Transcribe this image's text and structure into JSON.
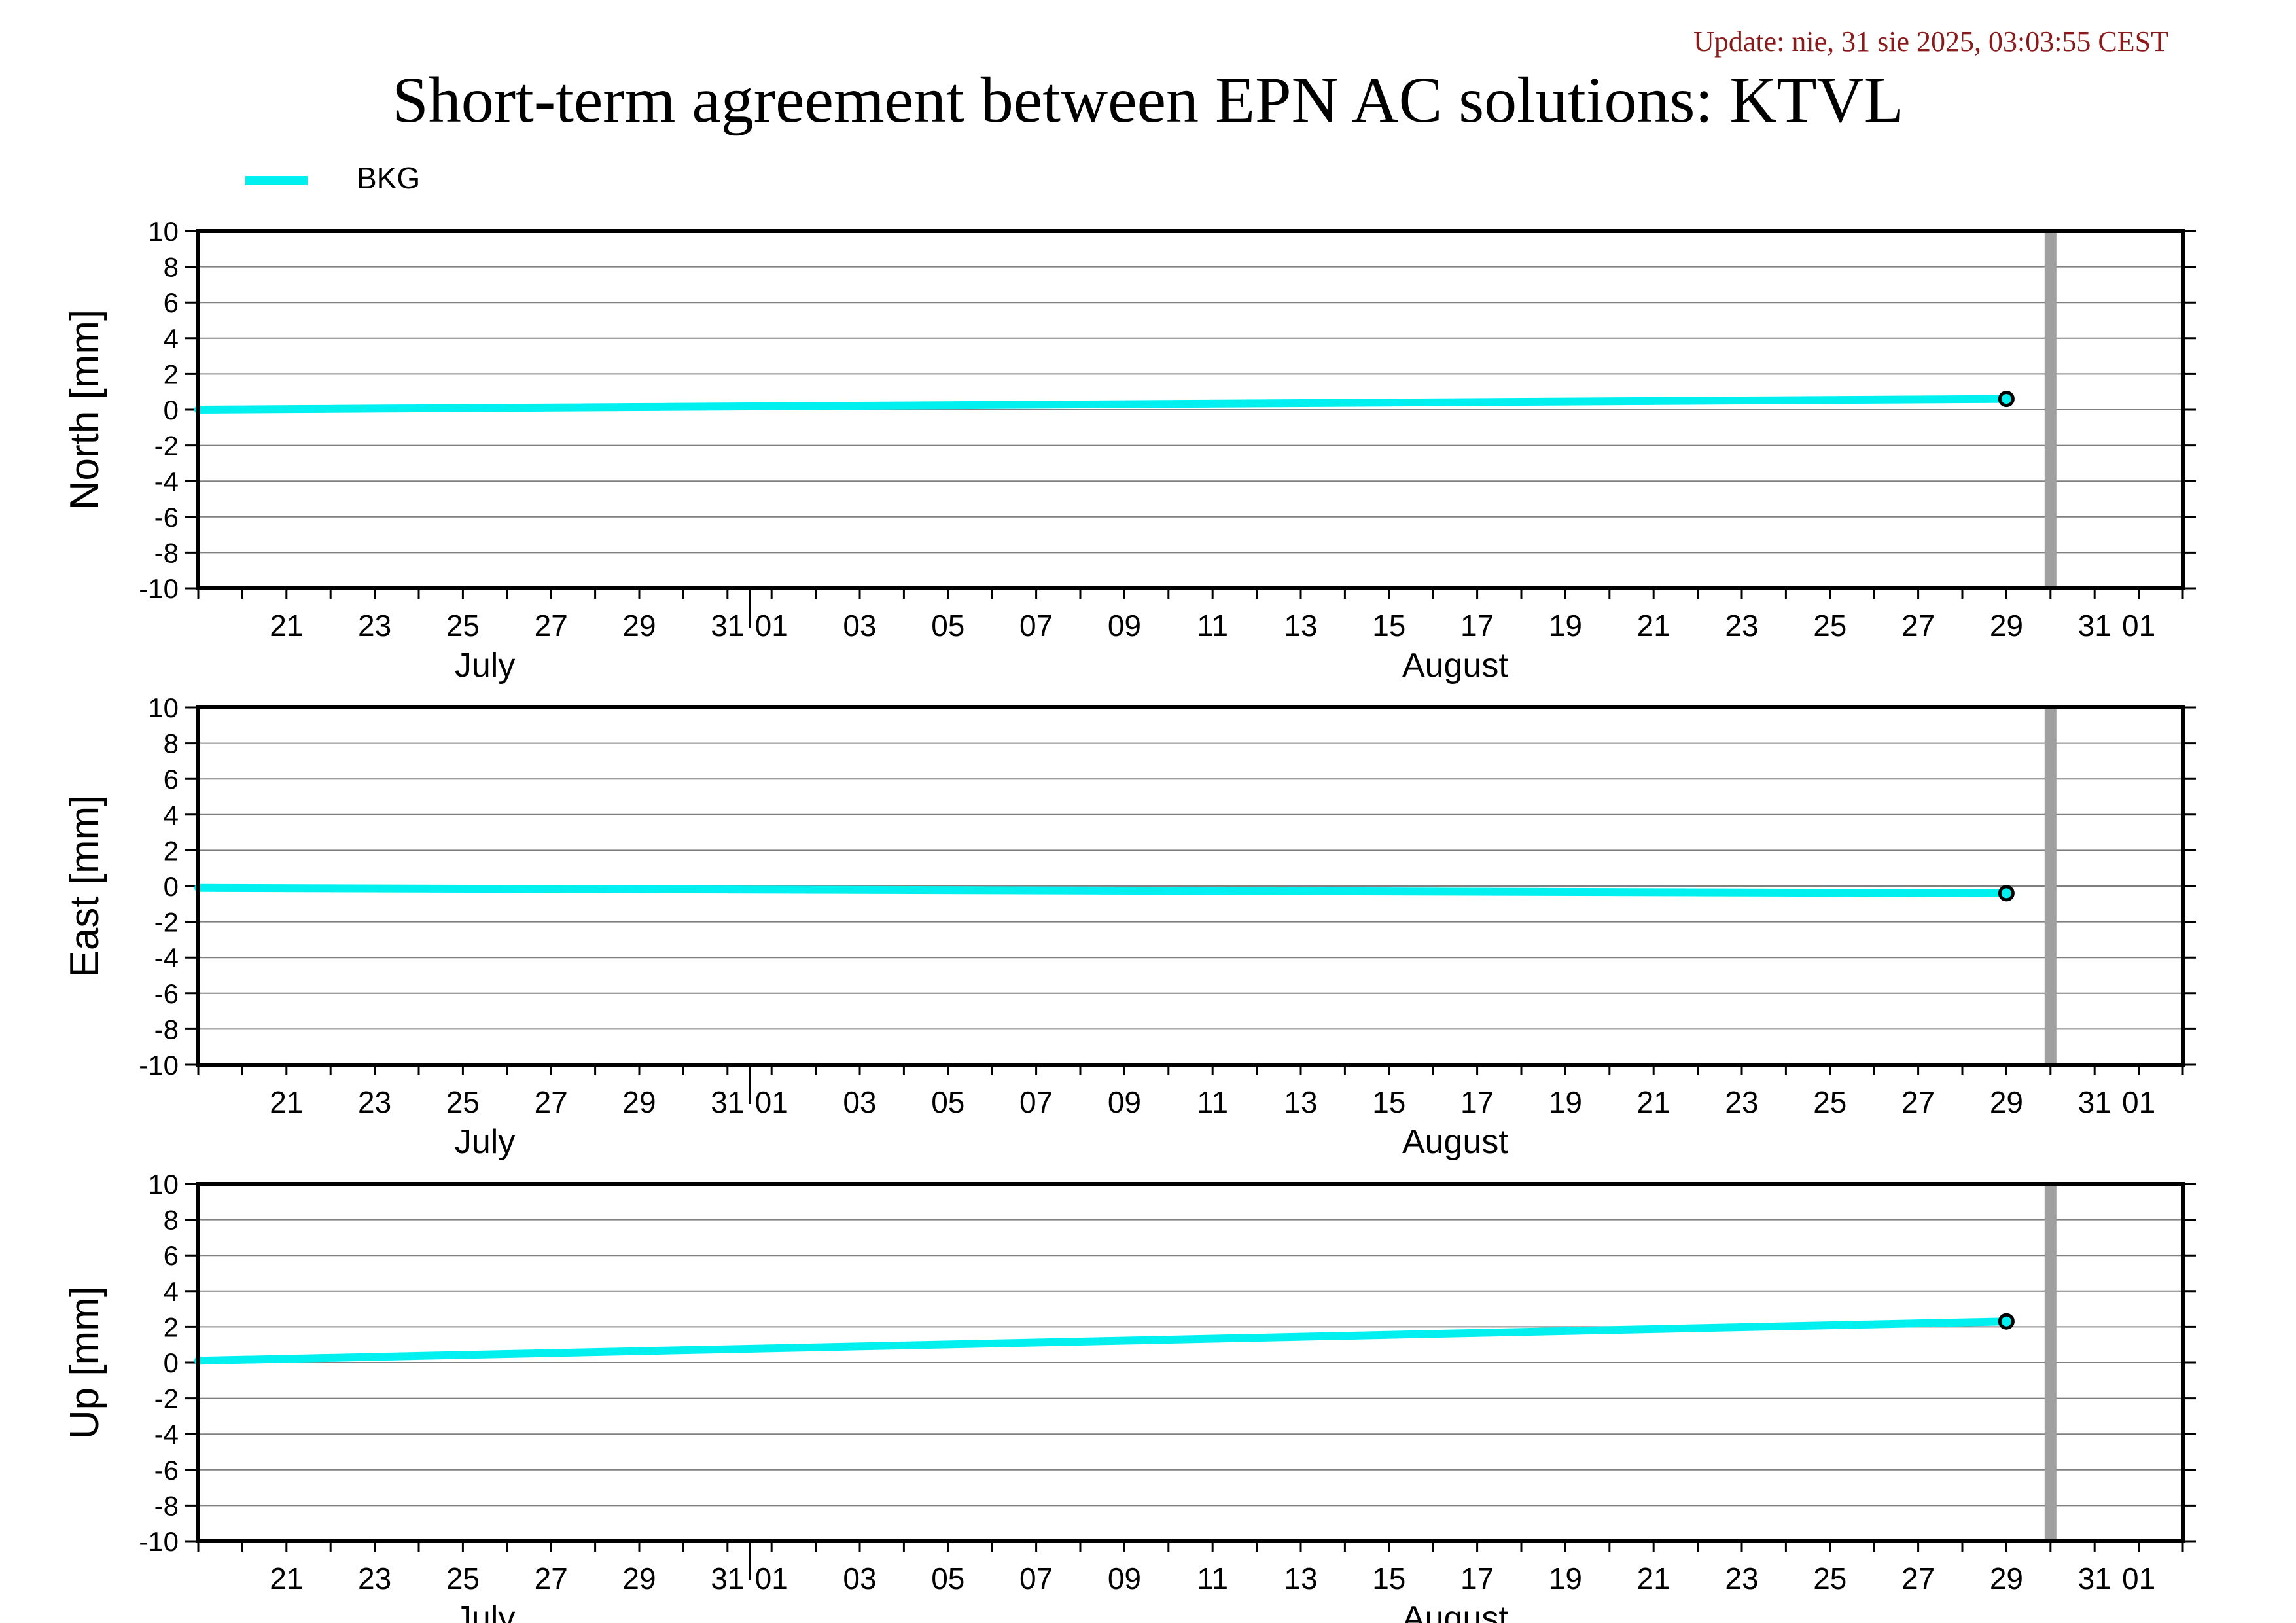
{
  "header": {
    "update": "Update: nie, 31 sie 2025, 03:03:55 CEST",
    "title": "Short-term agreement between EPN AC solutions: KTVL"
  },
  "legend": [
    {
      "label": "BKG",
      "color": "#00f0f0"
    }
  ],
  "colors": {
    "series": "#00f0f0",
    "marker_fill": "#00f0f0",
    "marker_edge": "#000000",
    "today_bar": "#a0a0a0",
    "grid": "#808080",
    "frame": "#000000"
  },
  "chart_data": [
    {
      "type": "line",
      "ylabel": "North [mm]",
      "ylim": [
        -10,
        10
      ],
      "yticks": [
        -10,
        -8,
        -6,
        -4,
        -2,
        0,
        2,
        4,
        6,
        8,
        10
      ],
      "xlim": [
        "2025-07-19",
        "2025-09-02"
      ],
      "x_tick_labels": [
        {
          "date": "2025-07-21",
          "label": "21"
        },
        {
          "date": "2025-07-23",
          "label": "23"
        },
        {
          "date": "2025-07-25",
          "label": "25"
        },
        {
          "date": "2025-07-27",
          "label": "27"
        },
        {
          "date": "2025-07-29",
          "label": "29"
        },
        {
          "date": "2025-07-31",
          "label": "31"
        },
        {
          "date": "2025-08-01",
          "label": "01"
        },
        {
          "date": "2025-08-03",
          "label": "03"
        },
        {
          "date": "2025-08-05",
          "label": "05"
        },
        {
          "date": "2025-08-07",
          "label": "07"
        },
        {
          "date": "2025-08-09",
          "label": "09"
        },
        {
          "date": "2025-08-11",
          "label": "11"
        },
        {
          "date": "2025-08-13",
          "label": "13"
        },
        {
          "date": "2025-08-15",
          "label": "15"
        },
        {
          "date": "2025-08-17",
          "label": "17"
        },
        {
          "date": "2025-08-19",
          "label": "19"
        },
        {
          "date": "2025-08-21",
          "label": "21"
        },
        {
          "date": "2025-08-23",
          "label": "23"
        },
        {
          "date": "2025-08-25",
          "label": "25"
        },
        {
          "date": "2025-08-27",
          "label": "27"
        },
        {
          "date": "2025-08-29",
          "label": "29"
        },
        {
          "date": "2025-08-31",
          "label": "31"
        },
        {
          "date": "2025-09-01",
          "label": "01"
        }
      ],
      "month_labels": [
        {
          "date": "2025-07-25.5",
          "label": "July"
        },
        {
          "date": "2025-08-16.5",
          "label": "August"
        }
      ],
      "today_marker": "2025-08-30",
      "grid": true,
      "series": [
        {
          "name": "BKG",
          "x": [
            "2025-07-19",
            "2025-08-29"
          ],
          "y": [
            0.0,
            0.6
          ],
          "marker_last": true
        }
      ]
    },
    {
      "type": "line",
      "ylabel": "East [mm]",
      "ylim": [
        -10,
        10
      ],
      "yticks": [
        -10,
        -8,
        -6,
        -4,
        -2,
        0,
        2,
        4,
        6,
        8,
        10
      ],
      "xlim": [
        "2025-07-19",
        "2025-09-02"
      ],
      "x_tick_labels": [
        {
          "date": "2025-07-21",
          "label": "21"
        },
        {
          "date": "2025-07-23",
          "label": "23"
        },
        {
          "date": "2025-07-25",
          "label": "25"
        },
        {
          "date": "2025-07-27",
          "label": "27"
        },
        {
          "date": "2025-07-29",
          "label": "29"
        },
        {
          "date": "2025-07-31",
          "label": "31"
        },
        {
          "date": "2025-08-01",
          "label": "01"
        },
        {
          "date": "2025-08-03",
          "label": "03"
        },
        {
          "date": "2025-08-05",
          "label": "05"
        },
        {
          "date": "2025-08-07",
          "label": "07"
        },
        {
          "date": "2025-08-09",
          "label": "09"
        },
        {
          "date": "2025-08-11",
          "label": "11"
        },
        {
          "date": "2025-08-13",
          "label": "13"
        },
        {
          "date": "2025-08-15",
          "label": "15"
        },
        {
          "date": "2025-08-17",
          "label": "17"
        },
        {
          "date": "2025-08-19",
          "label": "19"
        },
        {
          "date": "2025-08-21",
          "label": "21"
        },
        {
          "date": "2025-08-23",
          "label": "23"
        },
        {
          "date": "2025-08-25",
          "label": "25"
        },
        {
          "date": "2025-08-27",
          "label": "27"
        },
        {
          "date": "2025-08-29",
          "label": "29"
        },
        {
          "date": "2025-08-31",
          "label": "31"
        },
        {
          "date": "2025-09-01",
          "label": "01"
        }
      ],
      "month_labels": [
        {
          "date": "2025-07-25.5",
          "label": "July"
        },
        {
          "date": "2025-08-16.5",
          "label": "August"
        }
      ],
      "today_marker": "2025-08-30",
      "grid": true,
      "series": [
        {
          "name": "BKG",
          "x": [
            "2025-07-19",
            "2025-08-29"
          ],
          "y": [
            -0.1,
            -0.4
          ],
          "marker_last": true
        }
      ]
    },
    {
      "type": "line",
      "ylabel": "Up [mm]",
      "ylim": [
        -10,
        10
      ],
      "yticks": [
        -10,
        -8,
        -6,
        -4,
        -2,
        0,
        2,
        4,
        6,
        8,
        10
      ],
      "xlim": [
        "2025-07-19",
        "2025-09-02"
      ],
      "x_tick_labels": [
        {
          "date": "2025-07-21",
          "label": "21"
        },
        {
          "date": "2025-07-23",
          "label": "23"
        },
        {
          "date": "2025-07-25",
          "label": "25"
        },
        {
          "date": "2025-07-27",
          "label": "27"
        },
        {
          "date": "2025-07-29",
          "label": "29"
        },
        {
          "date": "2025-07-31",
          "label": "31"
        },
        {
          "date": "2025-08-01",
          "label": "01"
        },
        {
          "date": "2025-08-03",
          "label": "03"
        },
        {
          "date": "2025-08-05",
          "label": "05"
        },
        {
          "date": "2025-08-07",
          "label": "07"
        },
        {
          "date": "2025-08-09",
          "label": "09"
        },
        {
          "date": "2025-08-11",
          "label": "11"
        },
        {
          "date": "2025-08-13",
          "label": "13"
        },
        {
          "date": "2025-08-15",
          "label": "15"
        },
        {
          "date": "2025-08-17",
          "label": "17"
        },
        {
          "date": "2025-08-19",
          "label": "19"
        },
        {
          "date": "2025-08-21",
          "label": "21"
        },
        {
          "date": "2025-08-23",
          "label": "23"
        },
        {
          "date": "2025-08-25",
          "label": "25"
        },
        {
          "date": "2025-08-27",
          "label": "27"
        },
        {
          "date": "2025-08-29",
          "label": "29"
        },
        {
          "date": "2025-08-31",
          "label": "31"
        },
        {
          "date": "2025-09-01",
          "label": "01"
        }
      ],
      "month_labels": [
        {
          "date": "2025-07-25.5",
          "label": "July"
        },
        {
          "date": "2025-08-16.5",
          "label": "August"
        }
      ],
      "today_marker": "2025-08-30",
      "grid": true,
      "series": [
        {
          "name": "BKG",
          "x": [
            "2025-07-19",
            "2025-08-29"
          ],
          "y": [
            0.1,
            2.3
          ],
          "marker_last": true
        }
      ]
    }
  ]
}
